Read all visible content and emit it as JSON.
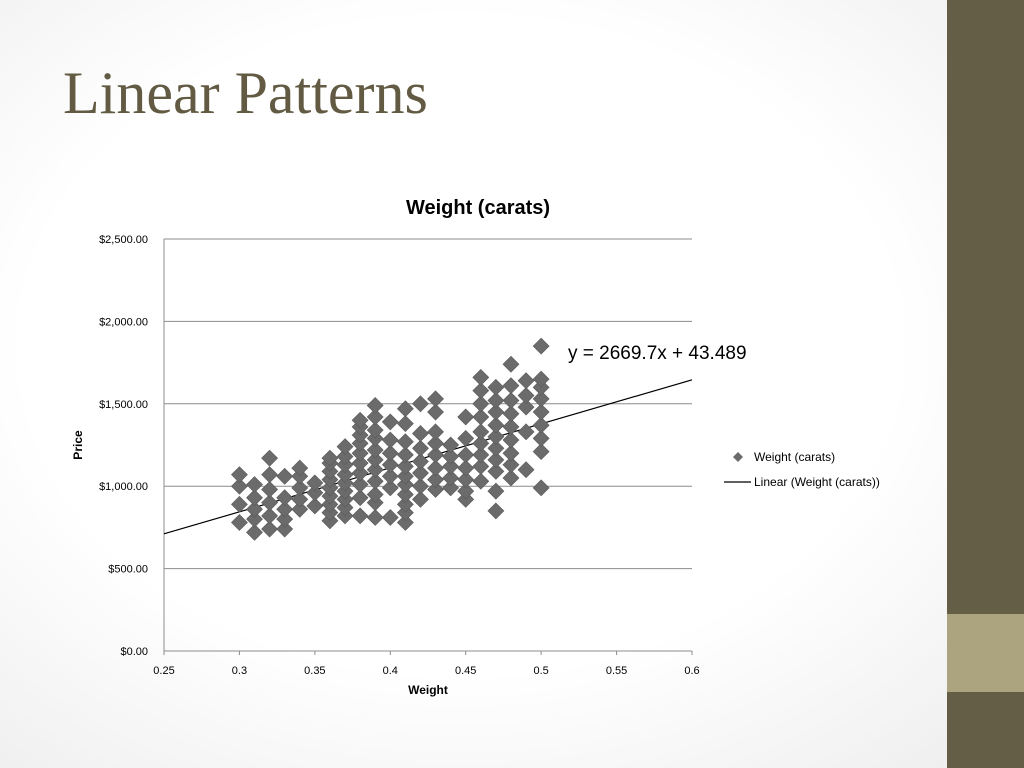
{
  "slide": {
    "title": "Linear Patterns"
  },
  "colors": {
    "title": "#625a42",
    "sidebar": "#645e47",
    "sidebar_accent": "#aba47f",
    "marker": "#6b6b6b",
    "gridline": "#8c8c8c"
  },
  "chart_data": {
    "type": "scatter",
    "title": "Weight (carats)",
    "xlabel": "Weight",
    "ylabel": "Price",
    "xlim": [
      0.25,
      0.6
    ],
    "ylim": [
      0,
      2500
    ],
    "x_ticks": [
      "0.25",
      "0.3",
      "0.35",
      "0.4",
      "0.45",
      "0.5",
      "0.55",
      "0.6"
    ],
    "y_ticks": [
      "$0.00",
      "$500.00",
      "$1,000.00",
      "$1,500.00",
      "$2,000.00",
      "$2,500.00"
    ],
    "grid": "horizontal",
    "legend_position": "right",
    "legend": [
      "Weight (carats)",
      "Linear (Weight (carats))"
    ],
    "trendline": {
      "slope": 2669.7,
      "intercept": 43.489,
      "equation": "y = 2669.7x + 43.489"
    },
    "series": [
      {
        "name": "Weight (carats)",
        "points": [
          [
            0.3,
            780
          ],
          [
            0.3,
            890
          ],
          [
            0.3,
            1000
          ],
          [
            0.3,
            1070
          ],
          [
            0.31,
            720
          ],
          [
            0.31,
            800
          ],
          [
            0.31,
            860
          ],
          [
            0.31,
            930
          ],
          [
            0.31,
            1010
          ],
          [
            0.32,
            740
          ],
          [
            0.32,
            820
          ],
          [
            0.32,
            900
          ],
          [
            0.32,
            980
          ],
          [
            0.32,
            1070
          ],
          [
            0.32,
            1170
          ],
          [
            0.33,
            740
          ],
          [
            0.33,
            800
          ],
          [
            0.33,
            860
          ],
          [
            0.33,
            930
          ],
          [
            0.33,
            1060
          ],
          [
            0.34,
            860
          ],
          [
            0.34,
            920
          ],
          [
            0.34,
            990
          ],
          [
            0.34,
            1060
          ],
          [
            0.34,
            1110
          ],
          [
            0.35,
            880
          ],
          [
            0.35,
            960
          ],
          [
            0.35,
            1020
          ],
          [
            0.36,
            790
          ],
          [
            0.36,
            840
          ],
          [
            0.36,
            890
          ],
          [
            0.36,
            940
          ],
          [
            0.36,
            990
          ],
          [
            0.36,
            1040
          ],
          [
            0.36,
            1090
          ],
          [
            0.36,
            1140
          ],
          [
            0.36,
            1170
          ],
          [
            0.37,
            820
          ],
          [
            0.37,
            870
          ],
          [
            0.37,
            920
          ],
          [
            0.37,
            970
          ],
          [
            0.37,
            1020
          ],
          [
            0.37,
            1070
          ],
          [
            0.37,
            1130
          ],
          [
            0.37,
            1180
          ],
          [
            0.37,
            1240
          ],
          [
            0.38,
            820
          ],
          [
            0.38,
            930
          ],
          [
            0.38,
            1010
          ],
          [
            0.38,
            1080
          ],
          [
            0.38,
            1140
          ],
          [
            0.38,
            1200
          ],
          [
            0.38,
            1260
          ],
          [
            0.38,
            1310
          ],
          [
            0.38,
            1360
          ],
          [
            0.38,
            1400
          ],
          [
            0.39,
            810
          ],
          [
            0.39,
            900
          ],
          [
            0.39,
            950
          ],
          [
            0.39,
            1030
          ],
          [
            0.39,
            1100
          ],
          [
            0.39,
            1160
          ],
          [
            0.39,
            1220
          ],
          [
            0.39,
            1290
          ],
          [
            0.39,
            1340
          ],
          [
            0.39,
            1420
          ],
          [
            0.39,
            1490
          ],
          [
            0.4,
            810
          ],
          [
            0.4,
            990
          ],
          [
            0.4,
            1060
          ],
          [
            0.4,
            1130
          ],
          [
            0.4,
            1200
          ],
          [
            0.4,
            1280
          ],
          [
            0.4,
            1390
          ],
          [
            0.41,
            780
          ],
          [
            0.41,
            840
          ],
          [
            0.41,
            890
          ],
          [
            0.41,
            950
          ],
          [
            0.41,
            1010
          ],
          [
            0.41,
            1060
          ],
          [
            0.41,
            1120
          ],
          [
            0.41,
            1190
          ],
          [
            0.41,
            1270
          ],
          [
            0.41,
            1380
          ],
          [
            0.41,
            1470
          ],
          [
            0.42,
            920
          ],
          [
            0.42,
            1000
          ],
          [
            0.42,
            1080
          ],
          [
            0.42,
            1150
          ],
          [
            0.42,
            1230
          ],
          [
            0.42,
            1320
          ],
          [
            0.42,
            1500
          ],
          [
            0.43,
            980
          ],
          [
            0.43,
            1040
          ],
          [
            0.43,
            1110
          ],
          [
            0.43,
            1190
          ],
          [
            0.43,
            1260
          ],
          [
            0.43,
            1330
          ],
          [
            0.43,
            1450
          ],
          [
            0.43,
            1530
          ],
          [
            0.44,
            990
          ],
          [
            0.44,
            1050
          ],
          [
            0.44,
            1120
          ],
          [
            0.44,
            1180
          ],
          [
            0.44,
            1250
          ],
          [
            0.45,
            920
          ],
          [
            0.45,
            970
          ],
          [
            0.45,
            1040
          ],
          [
            0.45,
            1110
          ],
          [
            0.45,
            1190
          ],
          [
            0.45,
            1290
          ],
          [
            0.45,
            1420
          ],
          [
            0.46,
            1030
          ],
          [
            0.46,
            1120
          ],
          [
            0.46,
            1190
          ],
          [
            0.46,
            1260
          ],
          [
            0.46,
            1330
          ],
          [
            0.46,
            1420
          ],
          [
            0.46,
            1500
          ],
          [
            0.46,
            1580
          ],
          [
            0.46,
            1660
          ],
          [
            0.47,
            850
          ],
          [
            0.47,
            970
          ],
          [
            0.47,
            1090
          ],
          [
            0.47,
            1160
          ],
          [
            0.47,
            1230
          ],
          [
            0.47,
            1300
          ],
          [
            0.47,
            1370
          ],
          [
            0.47,
            1450
          ],
          [
            0.47,
            1520
          ],
          [
            0.47,
            1600
          ],
          [
            0.48,
            1050
          ],
          [
            0.48,
            1130
          ],
          [
            0.48,
            1200
          ],
          [
            0.48,
            1280
          ],
          [
            0.48,
            1360
          ],
          [
            0.48,
            1440
          ],
          [
            0.48,
            1520
          ],
          [
            0.48,
            1610
          ],
          [
            0.48,
            1740
          ],
          [
            0.49,
            1100
          ],
          [
            0.49,
            1330
          ],
          [
            0.49,
            1480
          ],
          [
            0.49,
            1550
          ],
          [
            0.49,
            1640
          ],
          [
            0.5,
            990
          ],
          [
            0.5,
            1210
          ],
          [
            0.5,
            1290
          ],
          [
            0.5,
            1370
          ],
          [
            0.5,
            1450
          ],
          [
            0.5,
            1530
          ],
          [
            0.5,
            1600
          ],
          [
            0.5,
            1650
          ],
          [
            0.5,
            1850
          ]
        ]
      }
    ]
  }
}
